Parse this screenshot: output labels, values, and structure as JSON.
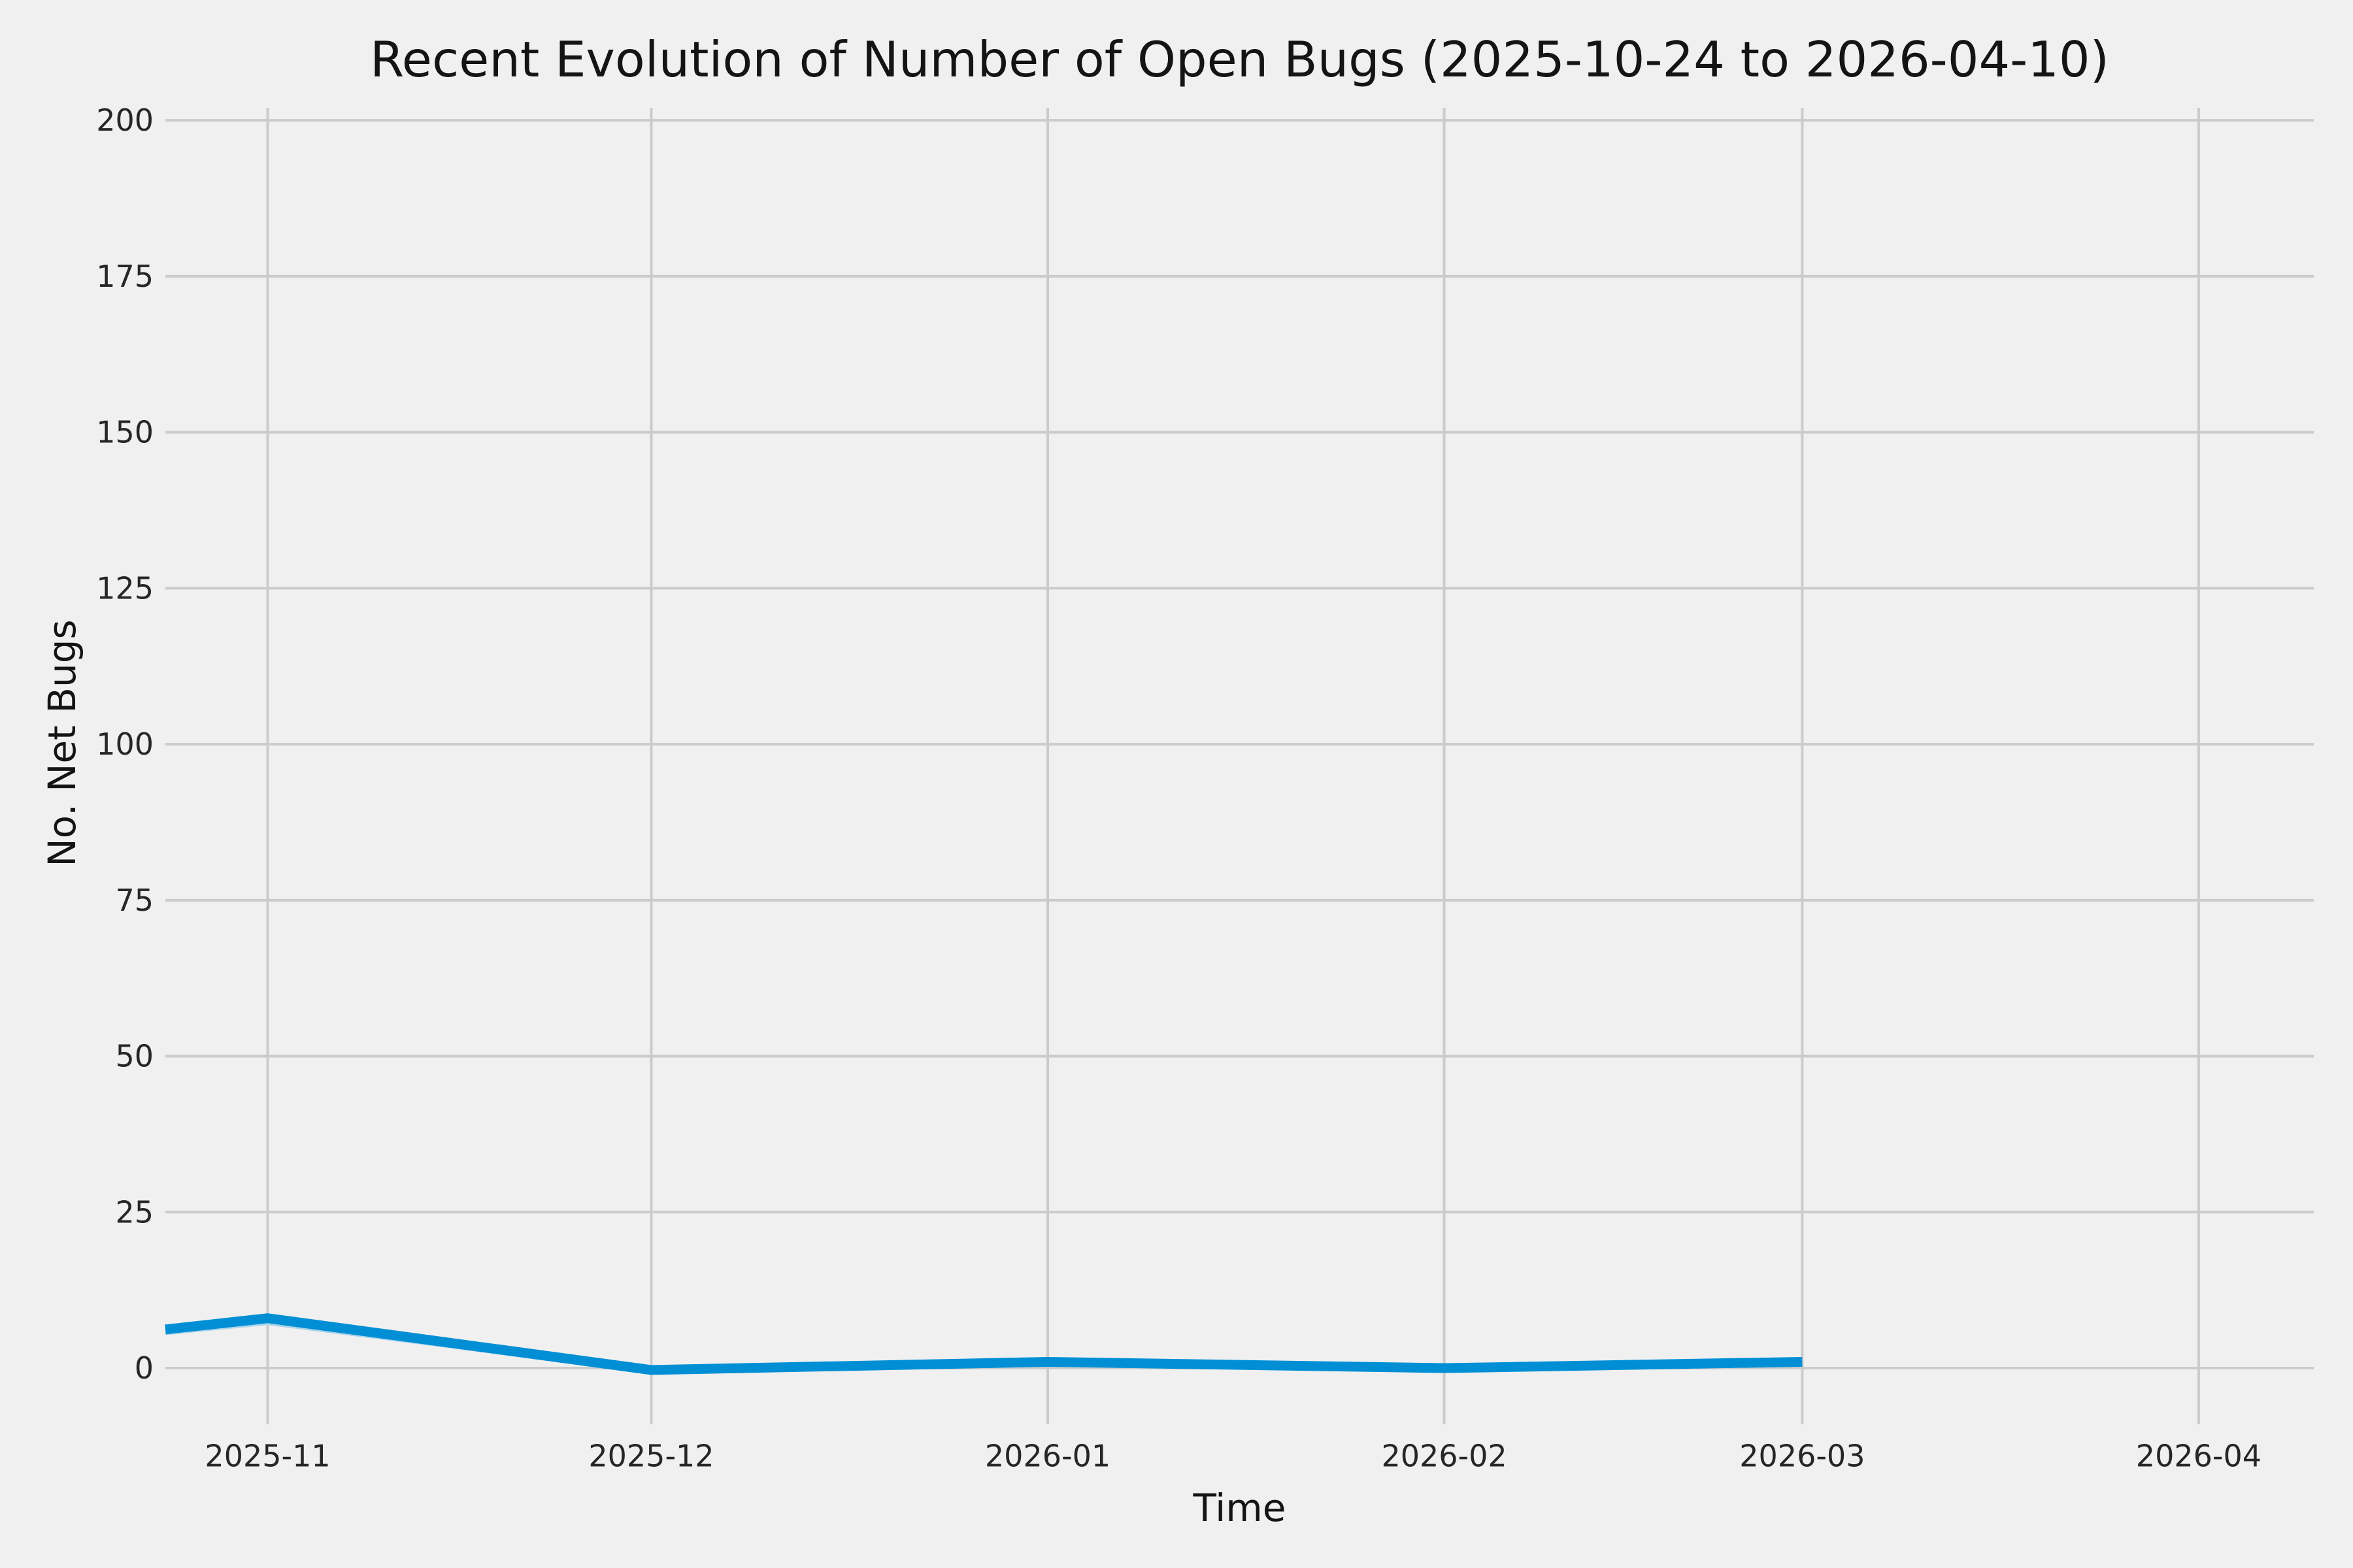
{
  "chart_data": {
    "type": "line",
    "title": "Recent Evolution of Number of Open Bugs (2025-10-24 to 2026-04-10)",
    "xlabel": "Time",
    "ylabel": "No. Net Bugs",
    "x_start_date": "2025-10-24",
    "x_end_date": "2026-04-10",
    "x_span_days": 168,
    "ylim": [
      -9,
      202
    ],
    "yticks": [
      0,
      25,
      50,
      75,
      100,
      125,
      150,
      175,
      200
    ],
    "xticks": [
      {
        "label": "2025-11",
        "day": 8
      },
      {
        "label": "2025-12",
        "day": 38
      },
      {
        "label": "2026-01",
        "day": 69
      },
      {
        "label": "2026-02",
        "day": 100
      },
      {
        "label": "2026-03",
        "day": 128
      },
      {
        "label": "2026-04",
        "day": 159
      }
    ],
    "grid": true,
    "legend": "none",
    "background_color": "#f0f0f0",
    "grid_color": "#cbcbcb",
    "text_color": "#262626",
    "series": [
      {
        "name": "open-bugs-secondary-light",
        "color": "#aed4ea",
        "line_width": 6,
        "points": [
          {
            "date": "2025-10-24",
            "day": 0,
            "value": 5.6
          },
          {
            "date": "2025-11-01",
            "day": 8,
            "value": 7.2
          },
          {
            "date": "2025-12-01",
            "day": 38,
            "value": -0.6
          },
          {
            "date": "2026-01-01",
            "day": 69,
            "value": 1.3
          },
          {
            "date": "2026-02-01",
            "day": 100,
            "value": 0.4
          },
          {
            "date": "2026-03-01",
            "day": 128,
            "value": 1.1
          }
        ]
      },
      {
        "name": "open-bugs-main",
        "color": "#008fd5",
        "line_width": 15,
        "points": [
          {
            "date": "2025-10-24",
            "day": 0,
            "value": 6.2
          },
          {
            "date": "2025-11-01",
            "day": 8,
            "value": 8
          },
          {
            "date": "2025-12-01",
            "day": 38,
            "value": -0.3
          },
          {
            "date": "2026-01-01",
            "day": 69,
            "value": 1
          },
          {
            "date": "2026-02-01",
            "day": 100,
            "value": 0
          },
          {
            "date": "2026-03-01",
            "day": 128,
            "value": 1
          }
        ]
      }
    ]
  }
}
